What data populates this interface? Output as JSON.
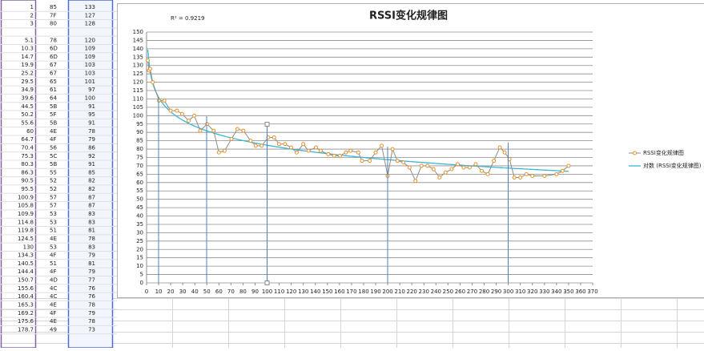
{
  "sheet": {
    "rows": [
      [
        "1",
        "85",
        "133"
      ],
      [
        "2",
        "7F",
        "127"
      ],
      [
        "3",
        "80",
        "128"
      ],
      null,
      [
        "5.1",
        "78",
        "120"
      ],
      [
        "10.3",
        "6D",
        "109"
      ],
      [
        "14.7",
        "6D",
        "109"
      ],
      [
        "19.9",
        "67",
        "103"
      ],
      [
        "25.2",
        "67",
        "103"
      ],
      [
        "29.5",
        "65",
        "101"
      ],
      [
        "34.9",
        "61",
        "97"
      ],
      [
        "39.6",
        "64",
        "100"
      ],
      [
        "44.5",
        "5B",
        "91"
      ],
      [
        "50.2",
        "5F",
        "95"
      ],
      [
        "55.6",
        "5B",
        "91"
      ],
      [
        "60",
        "4E",
        "78"
      ],
      [
        "64.7",
        "4F",
        "79"
      ],
      [
        "70.4",
        "56",
        "86"
      ],
      [
        "75.3",
        "5C",
        "92"
      ],
      [
        "80.3",
        "5B",
        "91"
      ],
      [
        "86.3",
        "55",
        "85"
      ],
      [
        "90.5",
        "52",
        "82"
      ],
      [
        "95.5",
        "52",
        "82"
      ],
      [
        "100.9",
        "57",
        "87"
      ],
      [
        "105.8",
        "57",
        "87"
      ],
      [
        "109.9",
        "53",
        "83"
      ],
      [
        "114.8",
        "53",
        "83"
      ],
      [
        "119.8",
        "51",
        "81"
      ],
      [
        "124.5",
        "4E",
        "78"
      ],
      [
        "130",
        "53",
        "83"
      ],
      [
        "134.3",
        "4F",
        "79"
      ],
      [
        "140.5",
        "51",
        "81"
      ],
      [
        "144.4",
        "4F",
        "79"
      ],
      [
        "150.7",
        "4D",
        "77"
      ],
      [
        "155.6",
        "4C",
        "76"
      ],
      [
        "160.4",
        "4C",
        "76"
      ],
      [
        "165.3",
        "4E",
        "78"
      ],
      [
        "169.2",
        "4F",
        "79"
      ],
      [
        "175.6",
        "4E",
        "78"
      ],
      [
        "178.7",
        "49",
        "73"
      ]
    ]
  },
  "chart_data": {
    "type": "line",
    "title": "RSSI变化规律图",
    "annotation": "R² = 0.9219",
    "x": [
      1,
      2,
      3,
      5.1,
      10.3,
      14.7,
      19.9,
      25.2,
      29.5,
      34.9,
      39.6,
      44.5,
      50.2,
      55.6,
      60,
      64.7,
      70.4,
      75.3,
      80.3,
      86.3,
      90.5,
      95.5,
      100.9,
      105.8,
      109.9,
      114.8,
      119.8,
      124.5,
      130,
      134.3,
      140.5,
      144.4,
      150.7,
      155.6,
      160.4,
      165.3,
      169.2,
      175.6,
      178.7,
      185,
      190,
      195,
      200,
      204,
      208,
      213,
      218,
      223,
      228,
      233,
      238,
      243,
      248,
      253,
      258,
      263,
      268,
      273,
      278,
      283,
      288,
      293,
      297,
      301,
      305,
      310,
      315,
      320,
      330,
      340,
      345,
      350
    ],
    "series": [
      {
        "name": "RSSI变化规律图",
        "color": "#e8902a",
        "values": [
          133,
          127,
          128,
          120,
          109,
          109,
          103,
          103,
          101,
          97,
          100,
          91,
          95,
          91,
          78,
          79,
          86,
          92,
          91,
          85,
          82,
          82,
          87,
          87,
          83,
          83,
          81,
          78,
          83,
          79,
          81,
          79,
          77,
          76,
          76,
          78,
          79,
          78,
          73,
          73,
          78,
          82,
          64,
          80,
          73,
          72,
          69,
          61,
          70,
          70,
          68,
          63,
          66,
          68,
          71,
          69,
          69,
          71,
          67,
          65,
          73,
          81,
          78,
          74,
          63,
          63,
          65,
          64,
          64,
          65,
          67,
          70
        ]
      }
    ],
    "trendline": {
      "name": "对数 (RSSI变化规律图)",
      "color": "#38b6d8",
      "type": "log"
    },
    "xlim": [
      0,
      370
    ],
    "xticks": [
      0,
      10,
      20,
      30,
      40,
      50,
      60,
      70,
      80,
      90,
      100,
      110,
      120,
      130,
      140,
      150,
      160,
      170,
      180,
      190,
      200,
      210,
      220,
      230,
      240,
      250,
      260,
      270,
      280,
      290,
      300,
      310,
      320,
      330,
      340,
      350,
      360,
      370
    ],
    "ylim": [
      0,
      150
    ],
    "yticks": [
      0,
      5,
      10,
      15,
      20,
      25,
      30,
      35,
      40,
      45,
      50,
      55,
      60,
      65,
      70,
      75,
      80,
      85,
      90,
      95,
      100,
      105,
      110,
      115,
      120,
      125,
      130,
      135,
      140,
      145,
      150
    ],
    "grid": true,
    "legend": "right"
  }
}
